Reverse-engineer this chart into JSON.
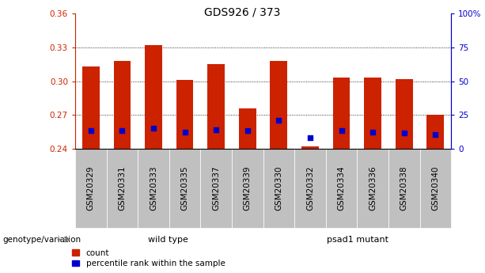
{
  "title": "GDS926 / 373",
  "samples": [
    "GSM20329",
    "GSM20331",
    "GSM20333",
    "GSM20335",
    "GSM20337",
    "GSM20339",
    "GSM20330",
    "GSM20332",
    "GSM20334",
    "GSM20336",
    "GSM20338",
    "GSM20340"
  ],
  "bar_heights": [
    0.313,
    0.318,
    0.332,
    0.301,
    0.315,
    0.276,
    0.318,
    0.242,
    0.303,
    0.303,
    0.302,
    0.27
  ],
  "blue_dot_y": [
    0.256,
    0.256,
    0.258,
    0.255,
    0.257,
    0.256,
    0.265,
    0.25,
    0.256,
    0.255,
    0.254,
    0.253
  ],
  "bar_bottom": 0.24,
  "ylim": [
    0.24,
    0.36
  ],
  "yticks_left": [
    0.24,
    0.27,
    0.3,
    0.33,
    0.36
  ],
  "yticks_right": [
    0,
    25,
    50,
    75,
    100
  ],
  "ytick_right_labels": [
    "0",
    "25",
    "50",
    "75",
    "100%"
  ],
  "bar_color": "#cc2200",
  "blue_color": "#0000cc",
  "bar_width": 0.55,
  "group1_label": "wild type",
  "group2_label": "psad1 mutant",
  "genotype_label": "genotype/variation",
  "legend_count": "count",
  "legend_pct": "percentile rank within the sample",
  "bg_color": "#ffffff",
  "plot_bg": "#ffffff",
  "axis_color_left": "#cc2200",
  "axis_color_right": "#0000cc",
  "tick_label_bg": "#c0c0c0",
  "group1_bg": "#ccffcc",
  "group2_bg": "#66dd66",
  "title_fontsize": 10,
  "tick_fontsize": 7.5,
  "label_fontsize": 8
}
